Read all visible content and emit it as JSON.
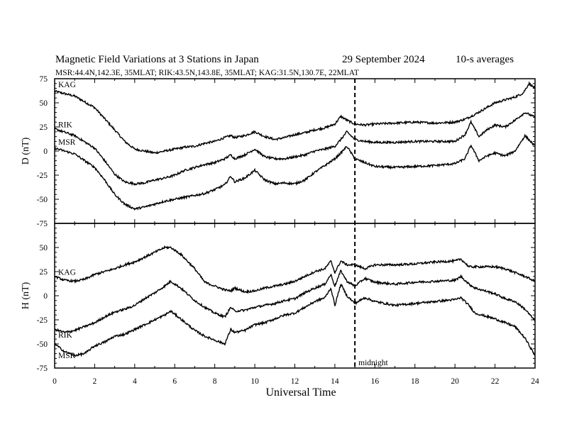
{
  "header": {
    "title": "Magnetic Field Variations at 3 Stations in Japan",
    "date": "29 September 2024",
    "averaging": "10-s averages",
    "stations_line": "MSR:44.4N,142.3E, 35MLAT;  RIK:43.5N,143.8E, 35MLAT;  KAG:31.5N,130.7E, 22MLAT"
  },
  "chart_data": [
    {
      "type": "line",
      "panel": "D",
      "ylabel": "D (nT)",
      "xlabel": "",
      "xlim": [
        0,
        24
      ],
      "ylim": [
        -75,
        75
      ],
      "yticks": [
        -75,
        -50,
        -25,
        0,
        25,
        50,
        75
      ],
      "xticks": [
        0,
        2,
        4,
        6,
        8,
        10,
        12,
        14,
        16,
        18,
        20,
        22,
        24
      ],
      "series": [
        {
          "name": "KAG",
          "x": [
            0,
            1,
            2,
            3,
            3.5,
            4,
            4.5,
            5,
            5.5,
            6,
            6.5,
            7,
            7.5,
            8,
            8.5,
            8.8,
            9,
            9.5,
            10,
            10.5,
            11,
            11.5,
            12,
            12.5,
            13,
            13.5,
            14,
            14.3,
            14.6,
            15,
            15.5,
            16,
            17,
            18,
            19,
            20,
            20.5,
            21,
            21.5,
            22,
            22.5,
            23,
            23.4,
            23.7,
            24
          ],
          "y": [
            62,
            57,
            45,
            22,
            10,
            2,
            0,
            -2,
            0,
            2,
            4,
            5,
            8,
            10,
            14,
            16,
            14,
            16,
            20,
            15,
            12,
            14,
            17,
            19,
            22,
            24,
            28,
            36,
            32,
            28,
            27,
            28,
            29,
            30,
            29,
            30,
            33,
            38,
            44,
            50,
            53,
            56,
            60,
            70,
            65
          ]
        },
        {
          "name": "RIK",
          "x": [
            0,
            1,
            2,
            2.5,
            3,
            3.5,
            4,
            4.5,
            5,
            5.5,
            6,
            6.5,
            7,
            7.5,
            8,
            8.5,
            8.8,
            9,
            9.5,
            10,
            10.5,
            11,
            11.5,
            12,
            12.5,
            13,
            13.5,
            14,
            14.3,
            14.6,
            15,
            15.5,
            16,
            17,
            18,
            19,
            20,
            20.5,
            20.8,
            21.2,
            21.6,
            22,
            22.5,
            23,
            23.5,
            24
          ],
          "y": [
            23,
            16,
            3,
            -10,
            -24,
            -32,
            -34,
            -33,
            -30,
            -28,
            -25,
            -20,
            -17,
            -14,
            -12,
            -8,
            -4,
            -8,
            -4,
            2,
            -6,
            -8,
            -8,
            -6,
            -4,
            0,
            2,
            5,
            12,
            20,
            12,
            10,
            9,
            9,
            10,
            10,
            10,
            17,
            30,
            15,
            22,
            27,
            25,
            32,
            40,
            35
          ]
        },
        {
          "name": "MSR",
          "x": [
            0,
            1,
            2,
            2.5,
            3,
            3.5,
            4,
            4.5,
            5,
            5.5,
            6,
            6.5,
            7,
            7.5,
            8,
            8.5,
            8.8,
            9,
            9.5,
            10,
            10.5,
            11,
            11.5,
            12,
            12.5,
            13,
            13.5,
            14,
            14.3,
            14.6,
            15,
            15.5,
            16,
            17,
            18,
            19,
            20,
            20.5,
            20.8,
            21.2,
            21.6,
            22,
            22.5,
            23,
            23.5,
            24
          ],
          "y": [
            3,
            -3,
            -17,
            -30,
            -45,
            -55,
            -60,
            -58,
            -55,
            -52,
            -50,
            -48,
            -46,
            -44,
            -40,
            -35,
            -26,
            -32,
            -28,
            -20,
            -30,
            -34,
            -33,
            -34,
            -30,
            -22,
            -15,
            -8,
            -2,
            5,
            -8,
            -12,
            -16,
            -17,
            -16,
            -15,
            -13,
            -8,
            6,
            -10,
            -5,
            -2,
            -5,
            0,
            16,
            5
          ]
        }
      ]
    },
    {
      "type": "line",
      "panel": "H",
      "ylabel": "H (nT)",
      "xlabel": "Universal Time",
      "xlim": [
        0,
        24
      ],
      "ylim": [
        -75,
        75
      ],
      "yticks": [
        -75,
        -50,
        -25,
        0,
        25,
        50
      ],
      "xticks": [
        0,
        2,
        4,
        6,
        8,
        10,
        12,
        14,
        16,
        18,
        20,
        22,
        24
      ],
      "series": [
        {
          "name": "KAG",
          "x": [
            0,
            0.5,
            1,
            1.5,
            2,
            2.5,
            3,
            3.5,
            4,
            4.5,
            5,
            5.5,
            5.8,
            6.3,
            7,
            7.5,
            8,
            8.5,
            8.8,
            9,
            9.5,
            10,
            10.5,
            11,
            11.5,
            12,
            12.5,
            13,
            13.5,
            13.8,
            14,
            14.3,
            14.6,
            15,
            15.5,
            16,
            17,
            18,
            19,
            20,
            20.3,
            20.7,
            21,
            22,
            22.5,
            23,
            23.5,
            24
          ],
          "y": [
            20,
            16,
            15,
            17,
            22,
            25,
            28,
            32,
            35,
            40,
            45,
            50,
            50,
            43,
            28,
            14,
            10,
            6,
            5,
            8,
            4,
            5,
            8,
            10,
            12,
            15,
            20,
            25,
            28,
            36,
            24,
            36,
            32,
            32,
            28,
            32,
            32,
            33,
            35,
            36,
            38,
            30,
            30,
            30,
            28,
            24,
            20,
            15
          ]
        },
        {
          "name": "RIK",
          "x": [
            0,
            0.5,
            1,
            1.5,
            2,
            2.5,
            3,
            3.5,
            4,
            4.5,
            5,
            5.5,
            5.8,
            6.3,
            7,
            7.5,
            8,
            8.5,
            8.8,
            9,
            9.5,
            10,
            10.5,
            11,
            11.5,
            12,
            12.5,
            13,
            13.5,
            13.8,
            14,
            14.3,
            14.6,
            15,
            15.5,
            16,
            17,
            18,
            19,
            20,
            20.3,
            20.7,
            21,
            22,
            22.5,
            23,
            23.5,
            24
          ],
          "y": [
            -35,
            -38,
            -36,
            -32,
            -28,
            -22,
            -17,
            -14,
            -10,
            -3,
            3,
            10,
            15,
            8,
            -5,
            -12,
            -18,
            -22,
            -12,
            -16,
            -15,
            -12,
            -10,
            -8,
            -5,
            -3,
            3,
            8,
            12,
            22,
            10,
            26,
            15,
            10,
            18,
            14,
            12,
            14,
            15,
            16,
            20,
            12,
            8,
            2,
            -3,
            -6,
            -14,
            -26
          ]
        },
        {
          "name": "MSR",
          "x": [
            0,
            0.5,
            1,
            1.5,
            2,
            2.5,
            3,
            3.5,
            4,
            4.5,
            5,
            5.5,
            5.8,
            6.3,
            7,
            7.5,
            8,
            8.5,
            8.8,
            9,
            9.5,
            10,
            10.5,
            11,
            11.5,
            12,
            12.5,
            13,
            13.5,
            13.8,
            14,
            14.3,
            14.6,
            15,
            15.5,
            16,
            17,
            18,
            19,
            20,
            20.3,
            20.7,
            21,
            22,
            22.5,
            23,
            23.5,
            24
          ],
          "y": [
            -50,
            -58,
            -62,
            -60,
            -52,
            -48,
            -42,
            -40,
            -35,
            -30,
            -25,
            -20,
            -16,
            -24,
            -36,
            -42,
            -46,
            -50,
            -35,
            -38,
            -36,
            -30,
            -28,
            -24,
            -20,
            -18,
            -12,
            -6,
            -2,
            8,
            -10,
            12,
            0,
            -8,
            -2,
            -6,
            -10,
            -8,
            -6,
            -4,
            -2,
            -10,
            -18,
            -24,
            -28,
            -32,
            -44,
            -62
          ]
        }
      ]
    }
  ],
  "annotations": {
    "midnight_label": "midnight",
    "midnight_x": 15
  }
}
